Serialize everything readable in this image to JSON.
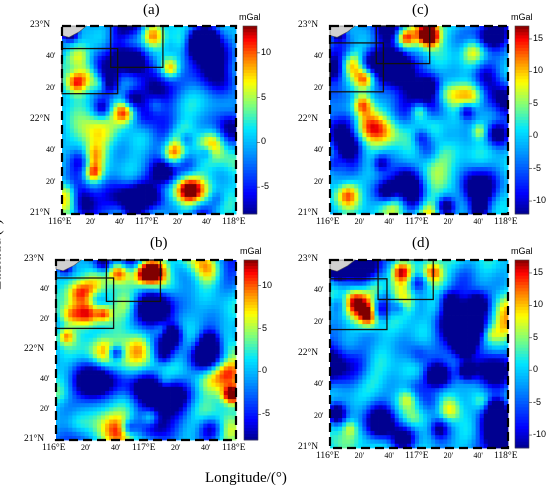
{
  "figure": {
    "x_axis_title": "Longitude/(°)",
    "y_axis_title": "Latitude/(°)",
    "unit": "mGal",
    "lat_labels": {
      "top": "23°N",
      "m40": "40'",
      "m20": "20'",
      "mid": "22°N",
      "b40": "40'",
      "b20": "20'",
      "bottom": "21°N"
    },
    "lon_labels": {
      "l0": "116°E",
      "l20": "20'",
      "l40": "40'",
      "l1": "117°E",
      "l120": "20'",
      "l140": "40'",
      "l2": "118°E"
    },
    "colorbar_colors": [
      "#000090",
      "#0000ff",
      "#0080ff",
      "#00e0ff",
      "#80ff80",
      "#ffff00",
      "#ff8000",
      "#ff0000",
      "#800000"
    ],
    "panels": [
      {
        "id": "a",
        "title": "(a)",
        "cbar_ticks": [
          "10",
          "5",
          "0",
          "-5"
        ],
        "cbar_range": [
          -8,
          13
        ]
      },
      {
        "id": "c",
        "title": "(c)",
        "cbar_ticks": [
          "15",
          "10",
          "5",
          "0",
          "-5",
          "-10"
        ],
        "cbar_range": [
          -12,
          17
        ]
      },
      {
        "id": "b",
        "title": "(b)",
        "cbar_ticks": [
          "10",
          "5",
          "0",
          "-5"
        ],
        "cbar_range": [
          -8,
          13
        ]
      },
      {
        "id": "d",
        "title": "(d)",
        "cbar_ticks": [
          "15",
          "10",
          "5",
          "0",
          "-5",
          "-10"
        ],
        "cbar_range": [
          -12,
          17
        ]
      }
    ]
  }
}
